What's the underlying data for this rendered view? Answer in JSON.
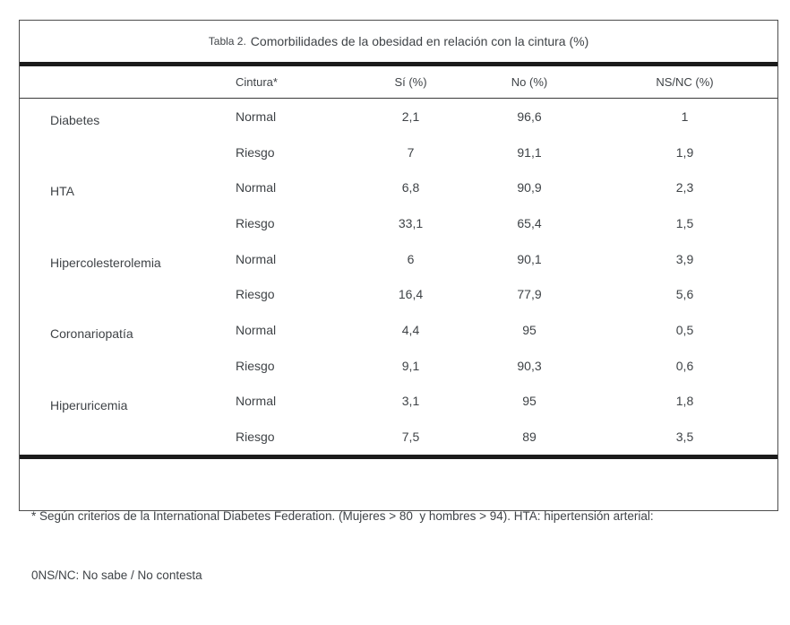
{
  "table": {
    "title_prefix": "Tabla 2.",
    "title": "Comorbilidades de la obesidad en relación con la cintura (%)",
    "columns": {
      "category": "",
      "cintura": "Cintura*",
      "si": "Sí (%)",
      "no": "No (%)",
      "nsnc": "NS/NC (%)"
    },
    "groups": [
      {
        "name": "Diabetes",
        "rows": [
          {
            "cintura": "Normal",
            "si": "2,1",
            "no": "96,6",
            "nsnc": "1"
          },
          {
            "cintura": "Riesgo",
            "si": "7",
            "no": "91,1",
            "nsnc": "1,9"
          }
        ]
      },
      {
        "name": "HTA",
        "rows": [
          {
            "cintura": "Normal",
            "si": "6,8",
            "no": "90,9",
            "nsnc": "2,3"
          },
          {
            "cintura": "Riesgo",
            "si": "33,1",
            "no": "65,4",
            "nsnc": "1,5"
          }
        ]
      },
      {
        "name": "Hipercolesterolemia",
        "rows": [
          {
            "cintura": "Normal",
            "si": "6",
            "no": "90,1",
            "nsnc": "3,9"
          },
          {
            "cintura": "Riesgo",
            "si": "16,4",
            "no": "77,9",
            "nsnc": "5,6"
          }
        ]
      },
      {
        "name": "Coronariopatía",
        "rows": [
          {
            "cintura": "Normal",
            "si": "4,4",
            "no": "95",
            "nsnc": "0,5"
          },
          {
            "cintura": "Riesgo",
            "si": "9,1",
            "no": "90,3",
            "nsnc": "0,6"
          }
        ]
      },
      {
        "name": "Hiperuricemia",
        "rows": [
          {
            "cintura": "Normal",
            "si": "3,1",
            "no": "95",
            "nsnc": "1,8"
          },
          {
            "cintura": "Riesgo",
            "si": "7,5",
            "no": "89",
            "nsnc": "3,5"
          }
        ]
      }
    ],
    "footnote_line1": "* Según criterios de la International Diabetes Federation. (Mujeres > 80  y hombres > 94). HTA: hipertensión arterial:",
    "footnote_line2": "0NS/NC: No sabe / No contesta"
  },
  "colors": {
    "text": "#3f4347",
    "rule": "#1b1b1b",
    "border": "#4d4d4d",
    "background": "#ffffff"
  }
}
